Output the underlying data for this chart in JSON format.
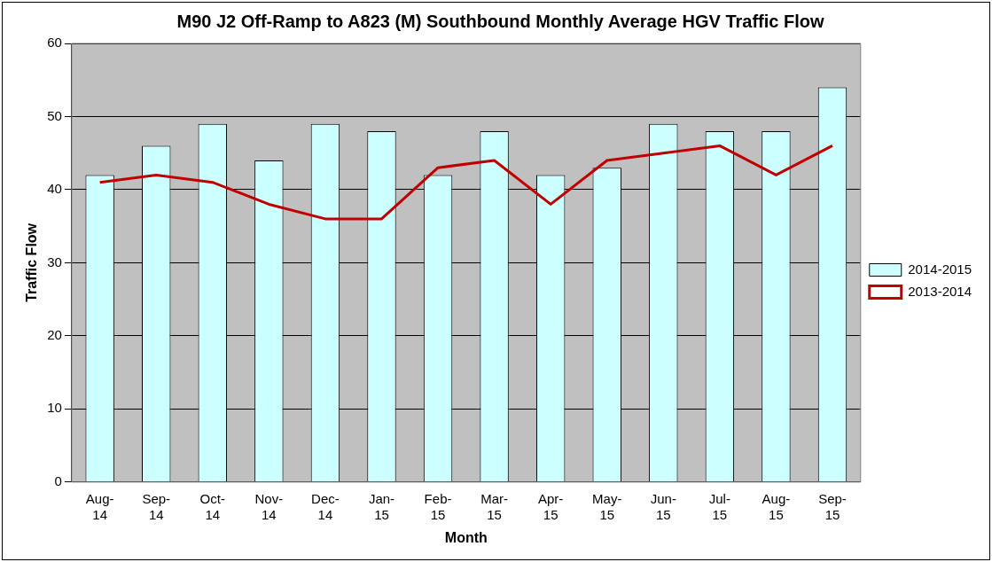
{
  "chart_data": {
    "type": "bar",
    "title": "M90 J2 Off-Ramp to A823 (M) Southbound Monthly Average HGV Traffic Flow",
    "xlabel": "Month",
    "ylabel": "Traffic Flow",
    "categories": [
      "Aug-14",
      "Sep-14",
      "Oct-14",
      "Nov-14",
      "Dec-14",
      "Jan-15",
      "Feb-15",
      "Mar-15",
      "Apr-15",
      "May-15",
      "Jun-15",
      "Jul-15",
      "Aug-15",
      "Sep-15"
    ],
    "series": [
      {
        "name": "2014-2015",
        "color": "#ccffff",
        "values": [
          42,
          46,
          49,
          44,
          49,
          48,
          42,
          48,
          42,
          43,
          49,
          48,
          48,
          54
        ]
      },
      {
        "name": "2013-2014",
        "type": "line",
        "color": "#c00000",
        "values": [
          41,
          42,
          41,
          38,
          36,
          36,
          43,
          44,
          38,
          44,
          45,
          46,
          42,
          46
        ]
      }
    ],
    "ylim": [
      0,
      60
    ],
    "yticks": [
      0,
      10,
      20,
      30,
      40,
      50,
      60
    ],
    "grid": "y",
    "legend": "right",
    "marker": "none"
  }
}
